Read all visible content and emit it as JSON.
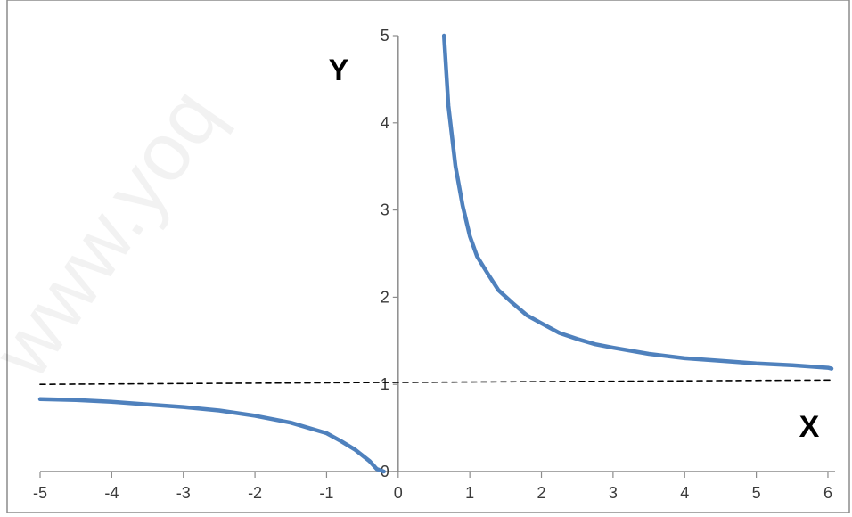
{
  "watermark": "www.yoq",
  "chart_data": {
    "type": "line",
    "xlabel": "X",
    "ylabel": "Y",
    "xlim": [
      -5,
      6.1
    ],
    "ylim": [
      0,
      5
    ],
    "x_ticks": [
      -5,
      -4,
      -3,
      -2,
      -1,
      0,
      1,
      2,
      3,
      4,
      5,
      6
    ],
    "y_ticks": [
      0,
      1,
      2,
      3,
      4,
      5
    ],
    "grid": false,
    "legend": "none",
    "series": [
      {
        "color": "#4f81bd",
        "style": "solid",
        "points": [
          [
            -5,
            0.83
          ],
          [
            -4.5,
            0.82
          ],
          [
            -4,
            0.8
          ],
          [
            -3.5,
            0.77
          ],
          [
            -3,
            0.74
          ],
          [
            -2.5,
            0.7
          ],
          [
            -2,
            0.64
          ],
          [
            -1.5,
            0.56
          ],
          [
            -1,
            0.44
          ],
          [
            -0.8,
            0.35
          ],
          [
            -0.6,
            0.25
          ],
          [
            -0.4,
            0.12
          ],
          [
            -0.3,
            0.03
          ],
          [
            -0.2,
            0.0
          ]
        ]
      },
      {
        "color": "#4f81bd",
        "style": "solid",
        "points": [
          [
            0.64,
            5.0
          ],
          [
            0.7,
            4.2
          ],
          [
            0.8,
            3.5
          ],
          [
            0.9,
            3.05
          ],
          [
            1,
            2.7
          ],
          [
            1.1,
            2.47
          ],
          [
            1.25,
            2.27
          ],
          [
            1.4,
            2.08
          ],
          [
            1.6,
            1.93
          ],
          [
            1.8,
            1.79
          ],
          [
            2,
            1.7
          ],
          [
            2.25,
            1.59
          ],
          [
            2.5,
            1.52
          ],
          [
            2.75,
            1.46
          ],
          [
            3,
            1.42
          ],
          [
            3.5,
            1.35
          ],
          [
            4,
            1.3
          ],
          [
            4.5,
            1.27
          ],
          [
            5,
            1.24
          ],
          [
            5.5,
            1.22
          ],
          [
            6,
            1.19
          ],
          [
            6.05,
            1.18
          ]
        ]
      },
      {
        "color": "#000000",
        "style": "dashed",
        "points": [
          [
            -5,
            1.0
          ],
          [
            6.05,
            1.05
          ]
        ]
      }
    ]
  }
}
